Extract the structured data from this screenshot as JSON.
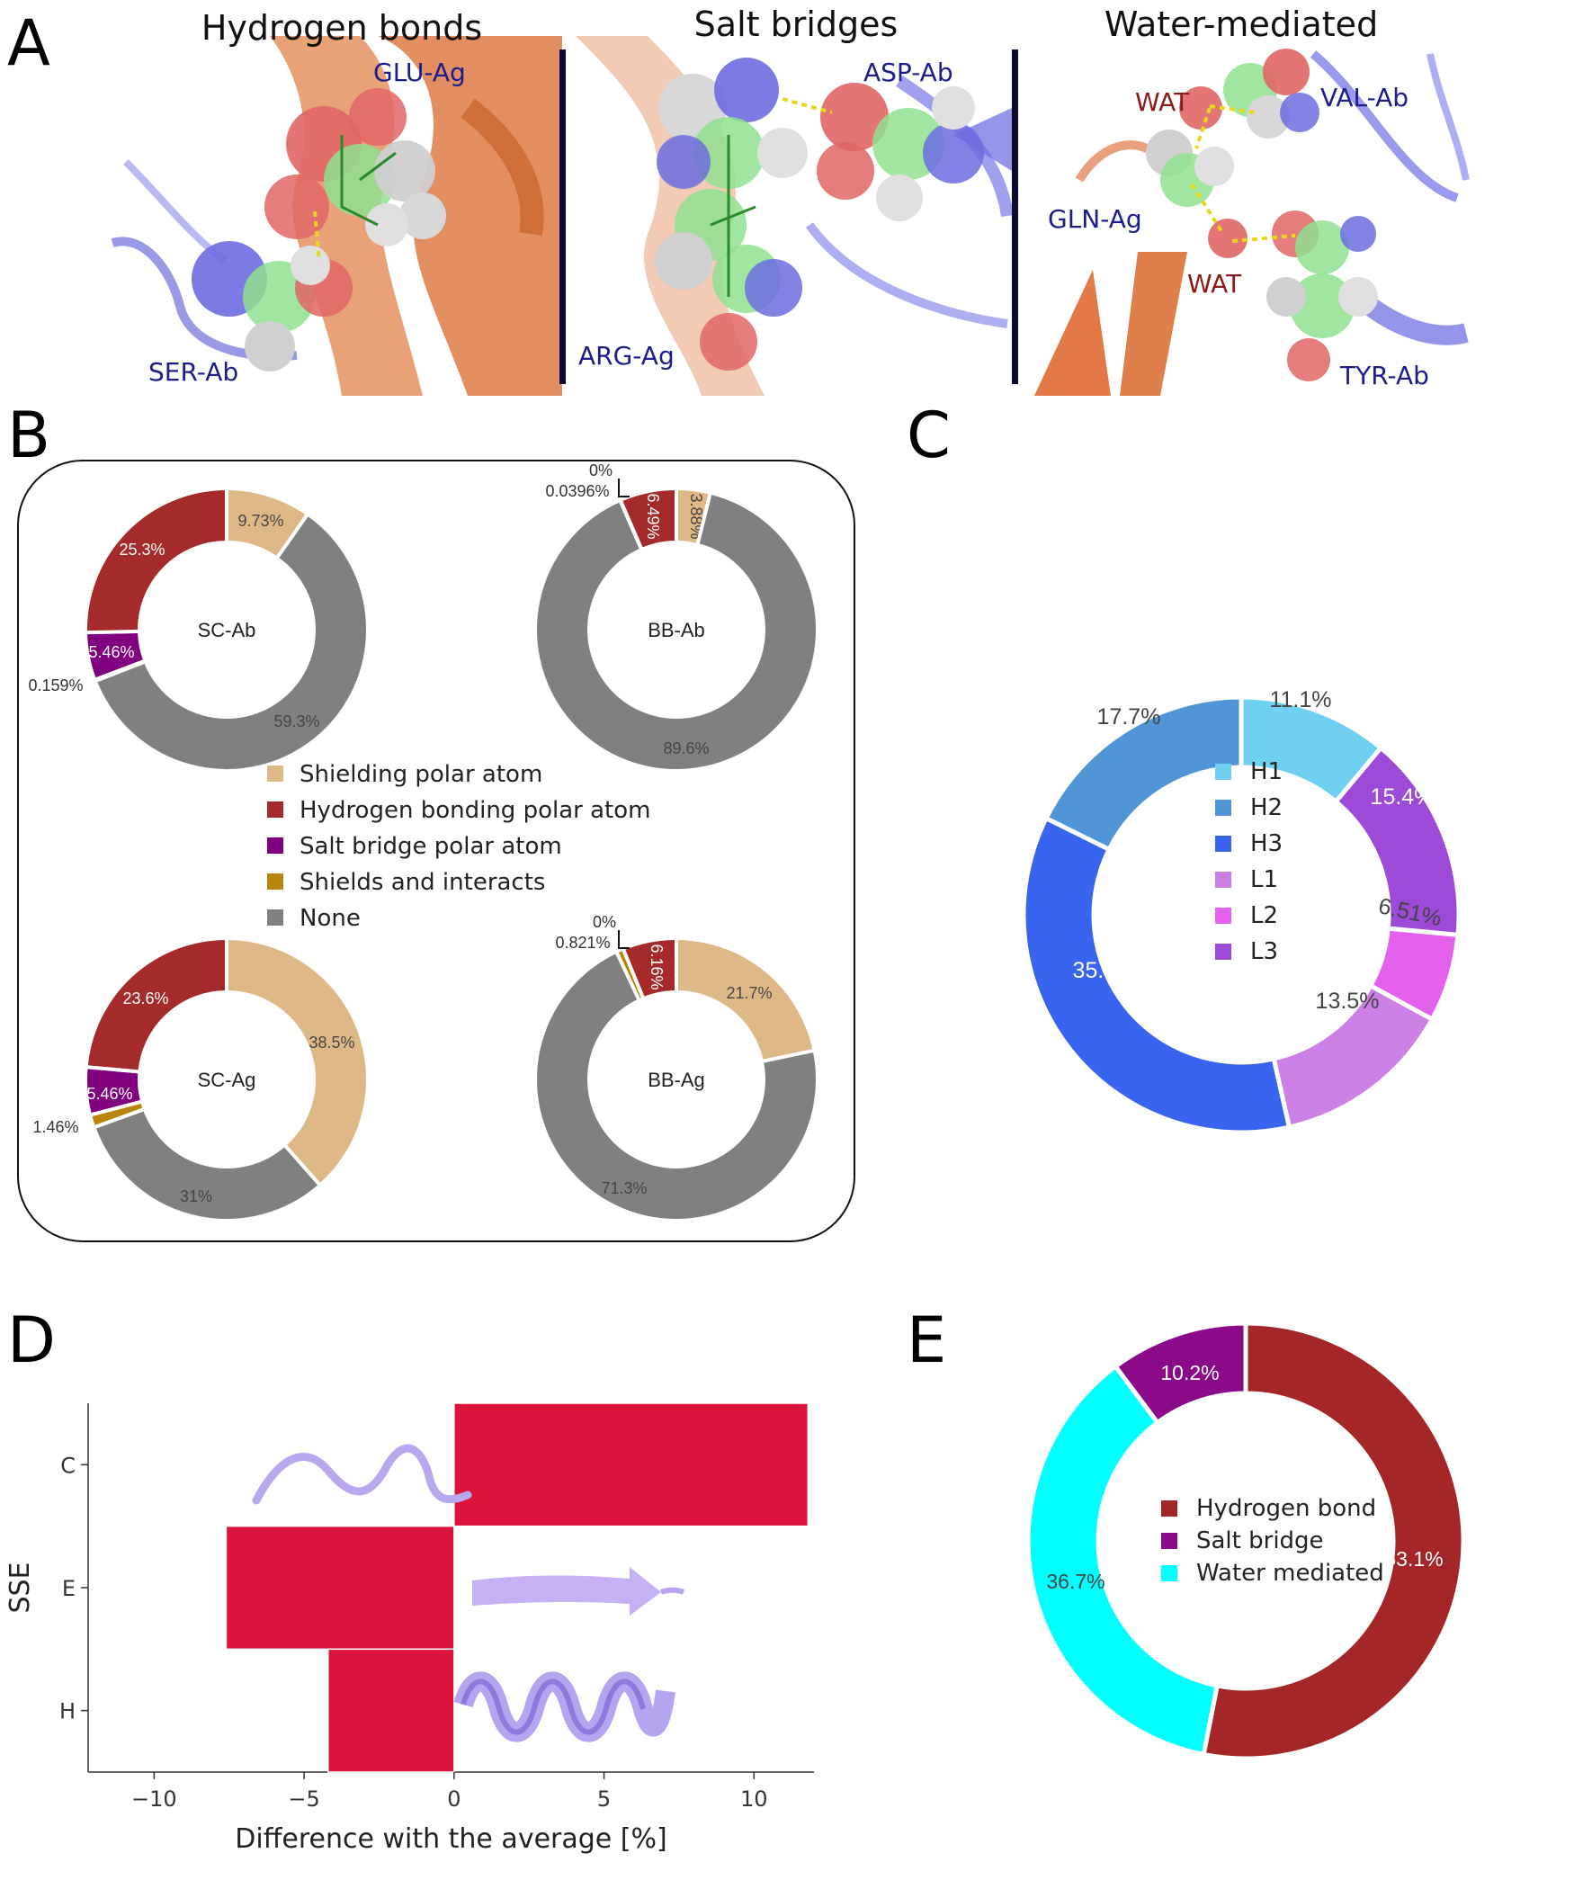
{
  "panel_letters": [
    "A",
    "B",
    "C",
    "D",
    "E"
  ],
  "panelA": {
    "titles": [
      "Hydrogen bonds",
      "Salt bridges",
      "Water-mediated"
    ],
    "hbond_labels": {
      "glu": "GLU-Ag",
      "ser": "SER-Ab"
    },
    "salt_labels": {
      "asp": "ASP-Ab",
      "arg": "ARG-Ag"
    },
    "water_labels": {
      "wat1": "WAT",
      "val": "VAL-Ab",
      "gln": "GLN-Ag",
      "wat2": "WAT",
      "tyr": "TYR-Ab"
    }
  },
  "panelB": {
    "legend": [
      "Shielding polar atom",
      "Hydrogen bonding polar atom",
      "Salt bridge polar atom",
      "Shields and interacts",
      "None"
    ],
    "colors": {
      "shield": "#deb887",
      "hbond": "#a52a2a",
      "salt": "#800080",
      "both": "#b8860b",
      "none": "#808080"
    }
  },
  "panelD": {
    "ylabel": "SSE",
    "xlabel": "Difference with the average [%]",
    "bar_color": "#dc143c"
  },
  "chart_data": [
    {
      "type": "pie",
      "name": "SC-Ab",
      "center_label": "SC-Ab",
      "labels": [
        "Shielding polar atom",
        "None",
        "Shields and interacts",
        "Salt bridge polar atom",
        "Hydrogen bonding polar atom"
      ],
      "values": [
        9.73,
        59.3,
        0.159,
        5.46,
        25.3
      ],
      "value_labels": [
        "9.73%",
        "59.3%",
        "0.159%",
        "5.46%",
        "25.3%"
      ]
    },
    {
      "type": "pie",
      "name": "BB-Ab",
      "center_label": "BB-Ab",
      "labels": [
        "Shielding polar atom",
        "None",
        "Shields and interacts",
        "Salt bridge polar atom",
        "Hydrogen bonding polar atom"
      ],
      "values": [
        3.88,
        89.6,
        0,
        0.0396,
        6.49
      ],
      "value_labels": [
        "3.88%",
        "89.6%",
        "0%",
        "0.0396%",
        "6.49%"
      ]
    },
    {
      "type": "pie",
      "name": "SC-Ag",
      "center_label": "SC-Ag",
      "labels": [
        "Shielding polar atom",
        "None",
        "Shields and interacts",
        "Salt bridge polar atom",
        "Hydrogen bonding polar atom"
      ],
      "values": [
        38.5,
        31,
        1.46,
        5.46,
        23.6
      ],
      "value_labels": [
        "38.5%",
        "31%",
        "1.46%",
        "5.46%",
        "23.6%"
      ]
    },
    {
      "type": "pie",
      "name": "BB-Ag",
      "center_label": "BB-Ag",
      "labels": [
        "Shielding polar atom",
        "None",
        "Shields and interacts",
        "Salt bridge polar atom",
        "Hydrogen bonding polar atom"
      ],
      "values": [
        21.7,
        71.3,
        0.821,
        0,
        6.16
      ],
      "value_labels": [
        "21.7%",
        "71.3%",
        "0.821%",
        "0%",
        "6.16%"
      ]
    },
    {
      "type": "pie",
      "name": "C",
      "labels": [
        "H1",
        "L3",
        "L2",
        "L1",
        "H3",
        "H2"
      ],
      "legend_order": [
        "H1",
        "H2",
        "H3",
        "L1",
        "L2",
        "L3"
      ],
      "values": [
        11.1,
        15.4,
        6.51,
        13.5,
        35.9,
        17.7
      ],
      "value_labels": [
        "11.1%",
        "15.4%",
        "6.51%",
        "13.5%",
        "35.9%",
        "17.7%"
      ],
      "colors": {
        "H1": "#6fd0f2",
        "H2": "#5096d6",
        "H3": "#3864ef",
        "L1": "#cc80e6",
        "L2": "#e461ee",
        "L3": "#9c4ad7"
      }
    },
    {
      "type": "bar",
      "name": "D",
      "orientation": "horizontal",
      "categories": [
        "C",
        "E",
        "H"
      ],
      "values": [
        11.8,
        -7.6,
        -4.2
      ],
      "xlim": [
        -12.2,
        12.0
      ],
      "xticks": [
        -10,
        -5,
        0,
        5,
        10
      ],
      "xtick_labels": [
        "−10",
        "−5",
        "0",
        "5",
        "10"
      ],
      "xlabel": "Difference with the average [%]",
      "ylabel": "SSE"
    },
    {
      "type": "pie",
      "name": "E",
      "labels": [
        "Hydrogen bond",
        "Water mediated",
        "Salt bridge"
      ],
      "legend_order": [
        "Hydrogen bond",
        "Salt bridge",
        "Water mediated"
      ],
      "values": [
        53.1,
        36.7,
        10.2
      ],
      "value_labels": [
        "53.1%",
        "36.7%",
        "10.2%"
      ],
      "colors": {
        "Hydrogen bond": "#a52626",
        "Salt bridge": "#8a0a8a",
        "Water mediated": "#00ffff"
      }
    }
  ]
}
